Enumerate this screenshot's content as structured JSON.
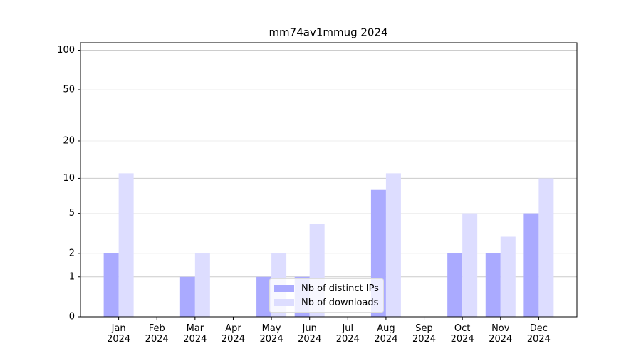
{
  "chart_data": {
    "type": "bar",
    "title": "mm74av1mmug 2024",
    "categories": [
      "Jan 2024",
      "Feb 2024",
      "Mar 2024",
      "Apr 2024",
      "May 2024",
      "Jun 2024",
      "Jul 2024",
      "Aug 2024",
      "Sep 2024",
      "Oct 2024",
      "Nov 2024",
      "Dec 2024"
    ],
    "series": [
      {
        "name": "Nb of distinct IPs",
        "color": "#aaaaff",
        "values": [
          2,
          0,
          1,
          0,
          1,
          1,
          0,
          8,
          0,
          2,
          2,
          5
        ]
      },
      {
        "name": "Nb of downloads",
        "color": "#ddddff",
        "values": [
          11,
          0,
          2,
          0,
          2,
          4,
          0,
          11,
          0,
          5,
          3,
          10
        ]
      }
    ],
    "yscale": "log1p",
    "ylim": [
      0,
      114
    ],
    "yticks": [
      0,
      1,
      2,
      5,
      10,
      20,
      50,
      100
    ],
    "grid": true,
    "legend": "lower center"
  }
}
